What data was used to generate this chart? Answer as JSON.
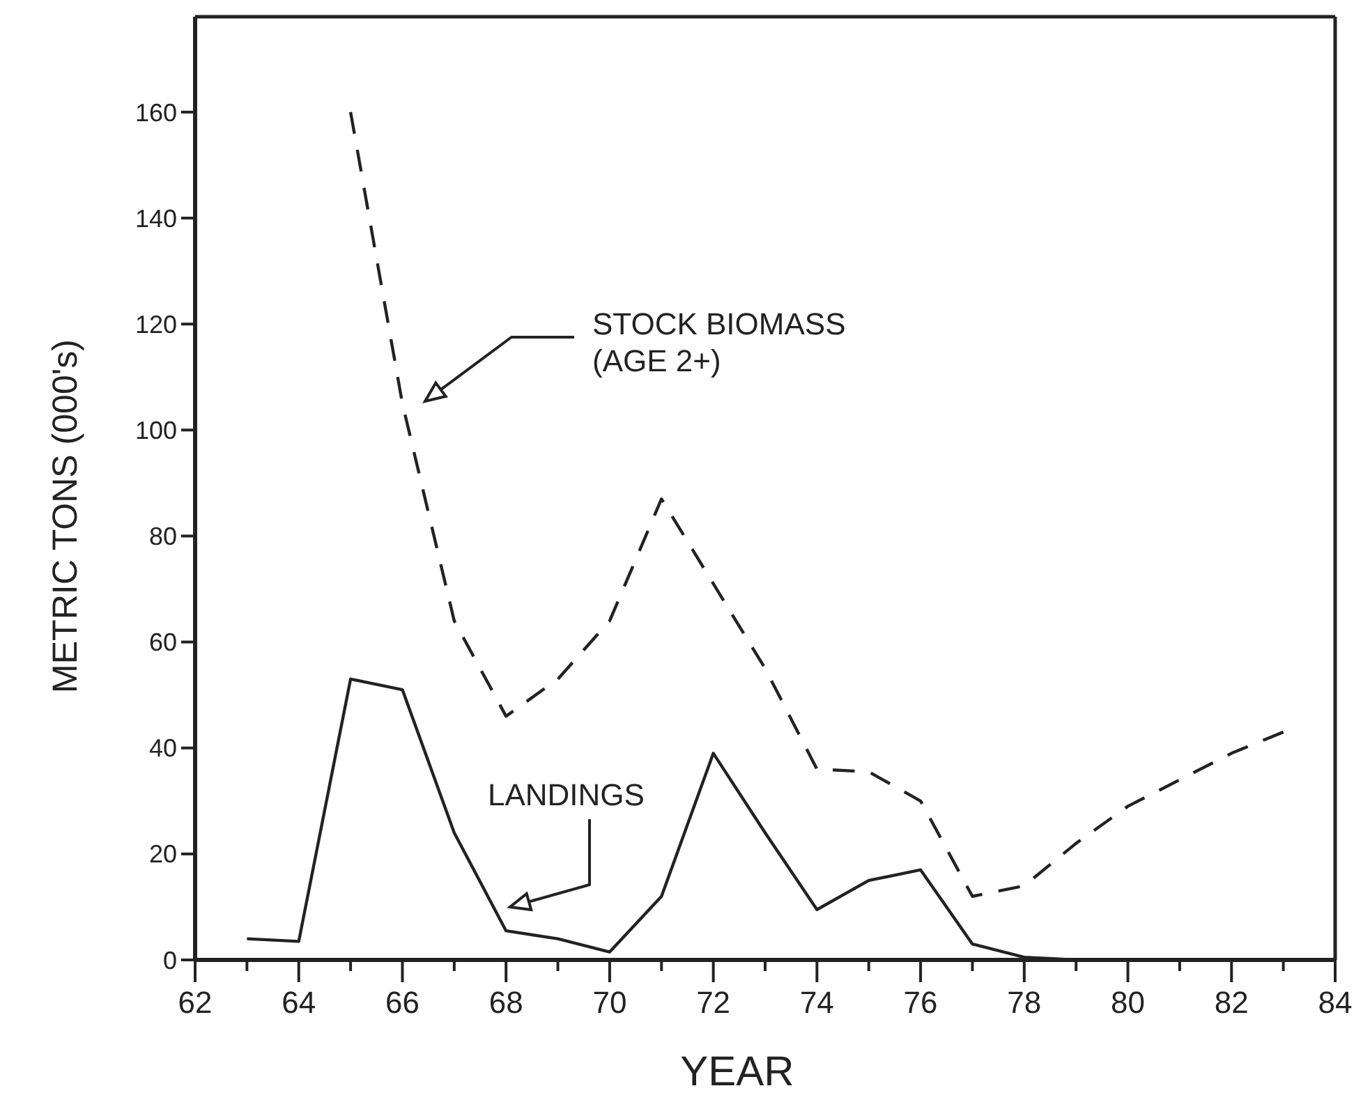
{
  "chart_data": {
    "type": "line",
    "xlabel": "YEAR",
    "ylabel": "METRIC TONS (000's)",
    "xlim": [
      62,
      84
    ],
    "xticks": [
      62,
      64,
      66,
      68,
      70,
      72,
      74,
      76,
      78,
      80,
      82,
      84
    ],
    "ylim": [
      0,
      178
    ],
    "yticks": [
      0,
      20,
      40,
      60,
      80,
      100,
      120,
      140,
      160
    ],
    "grid": false,
    "marker": "none",
    "annotations": [
      "STOCK BIOMASS\n(AGE 2+)",
      "LANDINGS"
    ],
    "series": [
      {
        "color": "#222222",
        "line_style": "dashed",
        "x": [
          65,
          66,
          67,
          68,
          69,
          70,
          71,
          72,
          73,
          74,
          75,
          76,
          77,
          78,
          79,
          80,
          81,
          82,
          83
        ],
        "values": [
          160,
          105,
          64,
          46,
          53,
          64,
          87,
          71,
          55,
          36,
          35.5,
          30,
          12,
          14,
          22,
          29,
          34,
          39,
          43
        ]
      },
      {
        "color": "#222222",
        "line_style": "solid",
        "x": [
          63,
          64,
          65,
          66,
          67,
          68,
          69,
          70,
          71,
          72,
          73,
          74,
          75,
          76,
          77,
          78,
          79,
          80,
          81,
          82,
          83,
          84
        ],
        "values": [
          4,
          3.5,
          53,
          51,
          24,
          5.5,
          4,
          1.5,
          12,
          39,
          24,
          9.5,
          15,
          17,
          3,
          0.5,
          0,
          0,
          0,
          0,
          0,
          0
        ]
      }
    ]
  }
}
